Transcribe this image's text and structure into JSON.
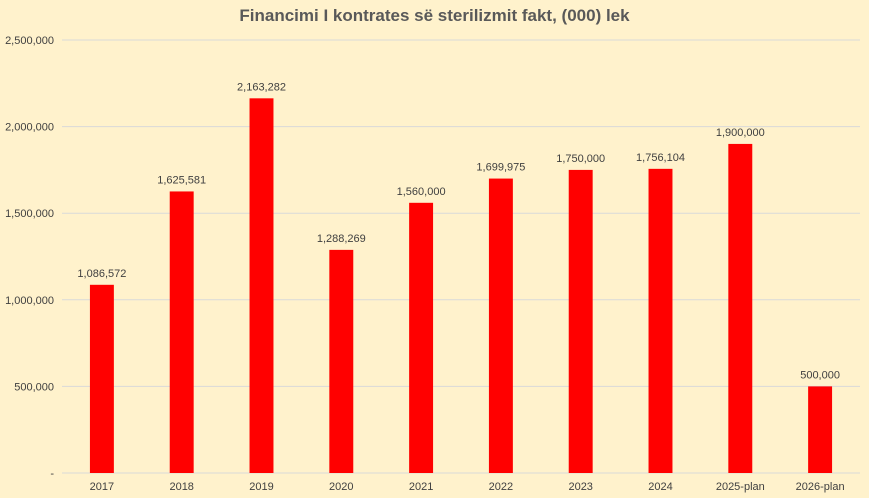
{
  "chart_data": {
    "type": "bar",
    "title": "Financimi I kontrates së sterilizmit fakt, (000) lek",
    "categories": [
      "2017",
      "2018",
      "2019",
      "2020",
      "2021",
      "2022",
      "2023",
      "2024",
      "2025-plan",
      "2026-plan"
    ],
    "values": [
      1086572,
      1625581,
      2163282,
      1288269,
      1560000,
      1699975,
      1750000,
      1756104,
      1900000,
      500000
    ],
    "data_labels": [
      "1,086,572",
      "1,625,581",
      "2,163,282",
      "1,288,269",
      "1,560,000",
      "1,699,975",
      "1,750,000",
      "1,756,104",
      "1,900,000",
      "500,000"
    ],
    "ylim": [
      0,
      2500000
    ],
    "y_ticks": [
      0,
      500000,
      1000000,
      1500000,
      2000000,
      2500000
    ],
    "y_tick_labels": [
      "-",
      "500,000",
      "1,000,000",
      "1,500,000",
      "2,000,000",
      "2,500,000"
    ],
    "xlabel": "",
    "ylabel": "",
    "grid": true,
    "legend": "none",
    "bar_color": "#ff0000",
    "background_color": "#fff2cc"
  }
}
